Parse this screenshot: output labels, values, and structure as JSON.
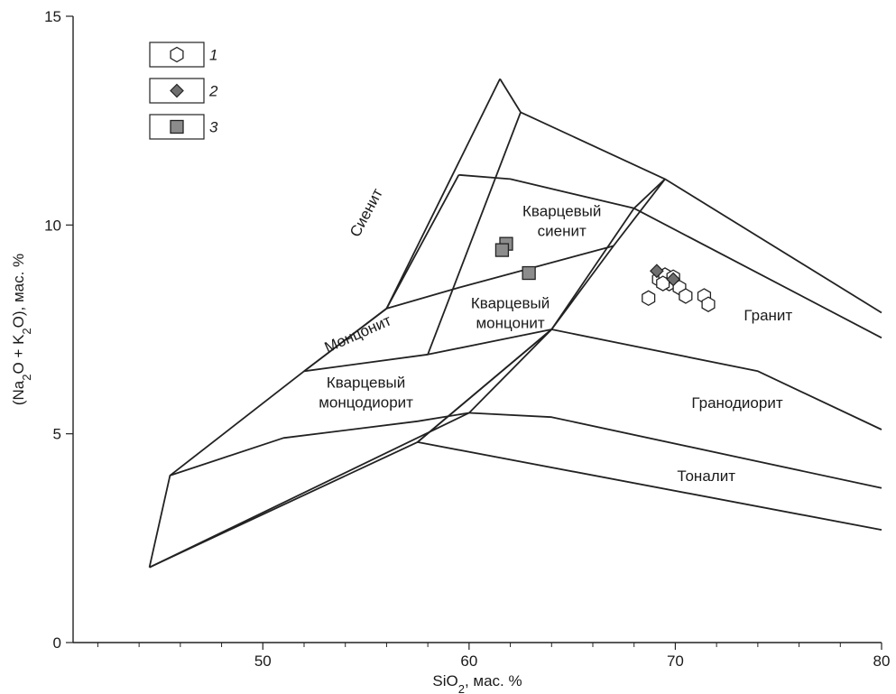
{
  "chart_data": {
    "type": "scatter",
    "xlabel_parts": [
      "SiO",
      "2",
      ", мас. %"
    ],
    "ylabel_parts": [
      "(Na",
      "2",
      "O + K",
      "2",
      "O), мас. %"
    ],
    "xlim": [
      40.8,
      80
    ],
    "ylim": [
      0,
      15
    ],
    "x_major_ticks": [
      50,
      60,
      70,
      80
    ],
    "x_minor_ticks": [
      42,
      44,
      46,
      48,
      52,
      54,
      56,
      58,
      62,
      64,
      66,
      68,
      72,
      74,
      76,
      78
    ],
    "y_major_ticks": [
      0,
      5,
      10,
      15
    ],
    "grid": false,
    "legend_position": "top-left",
    "legend": [
      {
        "label": "1",
        "marker": "hexagon",
        "fill": "#ffffff"
      },
      {
        "label": "2",
        "marker": "diamond",
        "fill": "#6f6f6f"
      },
      {
        "label": "3",
        "marker": "square",
        "fill": "#8c8c8c"
      }
    ],
    "boundaries": [
      [
        [
          44.5,
          1.8
        ],
        [
          45.5,
          4.0
        ],
        [
          52.0,
          6.5
        ],
        [
          56.0,
          8.0
        ],
        [
          59.5,
          11.2
        ]
      ],
      [
        [
          59.5,
          11.2
        ],
        [
          62.0,
          11.1
        ],
        [
          68.0,
          10.4
        ],
        [
          80.0,
          7.3
        ]
      ],
      [
        [
          44.5,
          1.8
        ],
        [
          57.5,
          4.8
        ],
        [
          64.0,
          7.5
        ],
        [
          67.0,
          9.5
        ],
        [
          69.5,
          11.1
        ]
      ],
      [
        [
          44.5,
          1.8
        ],
        [
          60.0,
          5.5
        ],
        [
          64.0,
          7.5
        ],
        [
          68.0,
          10.4
        ],
        [
          69.5,
          11.1
        ]
      ],
      [
        [
          61.5,
          13.5
        ],
        [
          62.5,
          12.7
        ],
        [
          69.5,
          11.1
        ],
        [
          80.0,
          7.9
        ]
      ],
      [
        [
          56.0,
          8.0
        ],
        [
          61.5,
          13.5
        ]
      ],
      [
        [
          58.0,
          6.9
        ],
        [
          62.5,
          12.7
        ]
      ],
      [
        [
          52.0,
          6.5
        ],
        [
          56.0,
          8.0
        ],
        [
          59.5,
          8.5
        ],
        [
          67.0,
          9.5
        ]
      ],
      [
        [
          45.5,
          4.0
        ],
        [
          51.0,
          4.9
        ],
        [
          57.5,
          5.3
        ],
        [
          60.0,
          5.5
        ]
      ],
      [
        [
          57.5,
          4.8
        ],
        [
          64.0,
          7.5
        ],
        [
          74.0,
          6.5
        ],
        [
          80.0,
          5.1
        ]
      ],
      [
        [
          60.0,
          5.5
        ],
        [
          64.0,
          5.4
        ],
        [
          80.0,
          3.7
        ]
      ],
      [
        [
          57.5,
          4.8
        ],
        [
          80.0,
          2.7
        ]
      ],
      [
        [
          52.0,
          6.5
        ],
        [
          58.0,
          6.9
        ],
        [
          64.0,
          7.5
        ]
      ]
    ],
    "field_labels": [
      {
        "lines": [
          "Сиенит"
        ],
        "x": 55.0,
        "y": 10.3,
        "rotate": -62
      },
      {
        "lines": [
          "Кварцевый",
          "сиенит"
        ],
        "x": 64.5,
        "y": 10.1,
        "rotate": 0
      },
      {
        "lines": [
          "Монцонит"
        ],
        "x": 54.6,
        "y": 7.4,
        "rotate": -24
      },
      {
        "lines": [
          "Кварцевый",
          "монцонит"
        ],
        "x": 62.0,
        "y": 7.9,
        "rotate": 0
      },
      {
        "lines": [
          "Кварцевый",
          "монцодиорит"
        ],
        "x": 55.0,
        "y": 6.0,
        "rotate": 0
      },
      {
        "lines": [
          "Гранит"
        ],
        "x": 74.5,
        "y": 7.85,
        "rotate": 0
      },
      {
        "lines": [
          "Гранодиорит"
        ],
        "x": 73.0,
        "y": 5.75,
        "rotate": 0
      },
      {
        "lines": [
          "Тоналит"
        ],
        "x": 71.5,
        "y": 4.0,
        "rotate": 0
      }
    ],
    "series": [
      {
        "marker": "hexagon",
        "points": [
          [
            69.2,
            8.7
          ],
          [
            69.5,
            8.8
          ],
          [
            69.7,
            8.6
          ],
          [
            69.9,
            8.75
          ],
          [
            70.2,
            8.5
          ],
          [
            70.5,
            8.3
          ],
          [
            71.4,
            8.3
          ],
          [
            71.6,
            8.1
          ],
          [
            68.7,
            8.25
          ],
          [
            69.4,
            8.6
          ]
        ]
      },
      {
        "marker": "diamond",
        "points": [
          [
            69.1,
            8.9
          ],
          [
            69.9,
            8.7
          ]
        ]
      },
      {
        "marker": "square",
        "points": [
          [
            61.8,
            9.55
          ],
          [
            61.6,
            9.4
          ],
          [
            62.9,
            8.85
          ]
        ]
      }
    ]
  }
}
